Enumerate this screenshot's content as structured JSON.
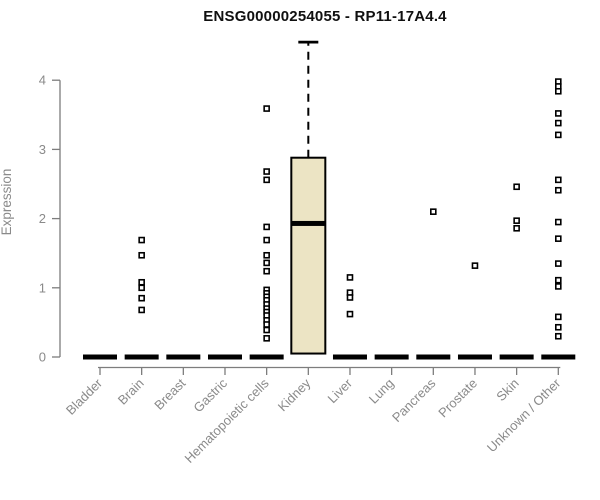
{
  "title": "ENSG00000254055 - RP11-17A4.4",
  "chart_data": {
    "type": "boxplot",
    "title": "ENSG00000254055 - RP11-17A4.4",
    "xlabel": "",
    "ylabel": "Expression",
    "ylim": [
      0,
      4.6
    ],
    "yticks": [
      0,
      1,
      2,
      3,
      4
    ],
    "grid": false,
    "legend": "none",
    "colors": {
      "box_fill": "#ece4c4",
      "box_stroke": "#000000",
      "median": "#000000",
      "outlier_stroke": "#000000",
      "outlier_fill": "#ffffff",
      "axis_line": "#7d7d7d",
      "axis_text": "#8a8a8a",
      "title_text": "#101010"
    },
    "categories": [
      "Bladder",
      "Brain",
      "Breast",
      "Gastric",
      "Hematopoietic cells",
      "Kidney",
      "Liver",
      "Lung",
      "Pancreas",
      "Prostate",
      "Skin",
      "Unknown / Other"
    ],
    "series": [
      {
        "name": "Bladder",
        "median": 0,
        "q1": 0,
        "q3": 0,
        "whisker_low": 0,
        "whisker_high": 0,
        "outliers": []
      },
      {
        "name": "Brain",
        "median": 0,
        "q1": 0,
        "q3": 0,
        "whisker_low": 0,
        "whisker_high": 0,
        "outliers": [
          1.69,
          1.47,
          1.08,
          1.0,
          0.85,
          0.68
        ]
      },
      {
        "name": "Breast",
        "median": 0,
        "q1": 0,
        "q3": 0,
        "whisker_low": 0,
        "whisker_high": 0,
        "outliers": []
      },
      {
        "name": "Gastric",
        "median": 0,
        "q1": 0,
        "q3": 0,
        "whisker_low": 0,
        "whisker_high": 0,
        "outliers": []
      },
      {
        "name": "Hematopoietic cells",
        "median": 0,
        "q1": 0,
        "q3": 0,
        "whisker_low": 0,
        "whisker_high": 0,
        "outliers": [
          3.59,
          2.68,
          2.56,
          1.88,
          1.69,
          1.47,
          1.36,
          1.24,
          0.97,
          0.92,
          0.87,
          0.82,
          0.76,
          0.7,
          0.65,
          0.6,
          0.53,
          0.47,
          0.39,
          0.27
        ]
      },
      {
        "name": "Kidney",
        "median": 1.93,
        "q1": 0.05,
        "q3": 2.88,
        "whisker_low": 0.05,
        "whisker_high": 4.55,
        "outliers": []
      },
      {
        "name": "Liver",
        "median": 0,
        "q1": 0,
        "q3": 0,
        "whisker_low": 0,
        "whisker_high": 0,
        "outliers": [
          1.15,
          0.93,
          0.86,
          0.62
        ]
      },
      {
        "name": "Lung",
        "median": 0,
        "q1": 0,
        "q3": 0,
        "whisker_low": 0,
        "whisker_high": 0,
        "outliers": []
      },
      {
        "name": "Pancreas",
        "median": 0,
        "q1": 0,
        "q3": 0,
        "whisker_low": 0,
        "whisker_high": 0,
        "outliers": [
          2.1
        ]
      },
      {
        "name": "Prostate",
        "median": 0,
        "q1": 0,
        "q3": 0,
        "whisker_low": 0,
        "whisker_high": 0,
        "outliers": [
          1.32
        ]
      },
      {
        "name": "Skin",
        "median": 0,
        "q1": 0,
        "q3": 0,
        "whisker_low": 0,
        "whisker_high": 0,
        "outliers": [
          2.46,
          1.97,
          1.86
        ]
      },
      {
        "name": "Unknown / Other",
        "median": 0,
        "q1": 0,
        "q3": 0,
        "whisker_low": 0,
        "whisker_high": 0,
        "outliers": [
          3.98,
          3.91,
          3.84,
          3.52,
          3.38,
          3.21,
          2.56,
          2.41,
          1.95,
          1.71,
          1.35,
          1.11,
          1.02,
          0.58,
          0.43,
          0.3
        ]
      }
    ]
  }
}
